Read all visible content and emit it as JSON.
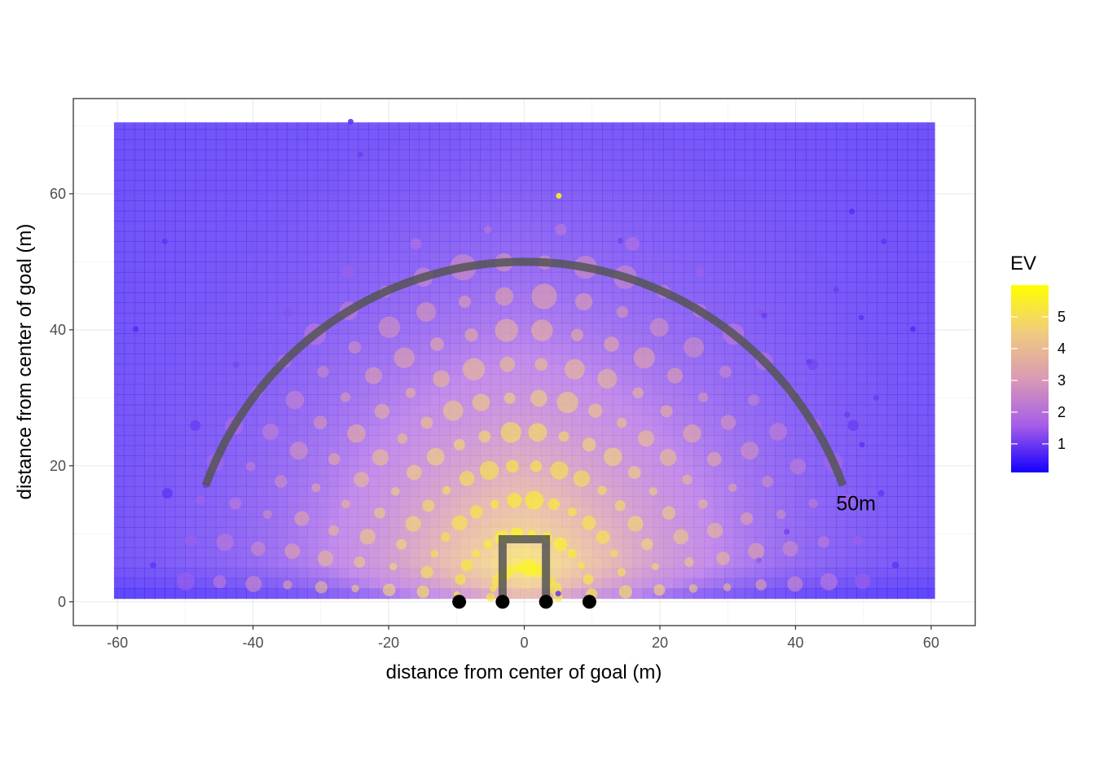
{
  "chart_data": {
    "type": "scatter",
    "title": "",
    "xlabel": "distance from center of goal (m)",
    "ylabel": "distance from center of goal (m)",
    "xlim": [
      -66.5,
      66.5
    ],
    "ylim": [
      -3.5,
      74
    ],
    "x_ticks": [
      -60,
      -40,
      -20,
      0,
      20,
      40,
      60
    ],
    "y_ticks": [
      0,
      20,
      40,
      60
    ],
    "grid": true,
    "background_field": {
      "description_free": true,
      "x_range": [
        -60.5,
        60.5
      ],
      "y_range": [
        0.5,
        70.5
      ],
      "ev_model": {
        "base": 5.9,
        "decay": 0.05,
        "side_factor": 1.0,
        "near_goal_dropoff": 6
      }
    },
    "legend": {
      "title": "EV",
      "placement": "right",
      "ticks": [
        1,
        2,
        3,
        4,
        5
      ],
      "range": [
        0.1,
        6.0
      ],
      "colors": [
        "#1400ff",
        "#b370e6",
        "#e2a7a6",
        "#f2d479",
        "#ffff00"
      ]
    },
    "arc": {
      "radius": 50,
      "start_deg": 20,
      "end_deg": 160,
      "color": "#555555",
      "label": "50m",
      "label_x": 46,
      "label_y": 14.5
    },
    "goal_posts": {
      "x": [
        -3.2,
        3.2
      ],
      "height": 9.2,
      "color": "#555555"
    },
    "posts": {
      "x": [
        -9.6,
        -3.2,
        3.2,
        9.6
      ],
      "y": [
        0,
        0,
        0,
        0
      ]
    },
    "semicircles": [
      {
        "radius": 5,
        "count": 12,
        "ev": 5.8,
        "size": 1.1
      },
      {
        "radius": 10,
        "count": 14,
        "ev": 5.9,
        "size": 1.0
      },
      {
        "radius": 15,
        "count": 16,
        "ev": 5.6,
        "size": 1.3
      },
      {
        "radius": 20,
        "count": 18,
        "ev": 5.3,
        "size": 1.5
      },
      {
        "radius": 25,
        "count": 20,
        "ev": 4.9,
        "size": 1.6
      },
      {
        "radius": 30,
        "count": 22,
        "ev": 4.4,
        "size": 1.7
      },
      {
        "radius": 35,
        "count": 22,
        "ev": 3.9,
        "size": 1.8
      },
      {
        "radius": 40,
        "count": 24,
        "ev": 3.4,
        "size": 1.9
      },
      {
        "radius": 45,
        "count": 24,
        "ev": 3.0,
        "size": 2.0
      },
      {
        "radius": 50,
        "count": 26,
        "ev": 2.6,
        "size": 2.2
      },
      {
        "radius": 55,
        "count": 16,
        "ev": 2.0,
        "size": 0.9
      }
    ],
    "outer_points": [
      {
        "x": -25.6,
        "y": 70.6,
        "ev": 0.8
      },
      {
        "x": -24.2,
        "y": 65.8,
        "ev": 0.9
      },
      {
        "x": 5.1,
        "y": 59.7,
        "ev": 5.7
      },
      {
        "x": -53.0,
        "y": 53.0,
        "ev": 0.8
      },
      {
        "x": 48.3,
        "y": 57.4,
        "ev": 0.7
      },
      {
        "x": 53.0,
        "y": 53.0,
        "ev": 0.8
      },
      {
        "x": -57.3,
        "y": 40.1,
        "ev": 0.7
      },
      {
        "x": 57.3,
        "y": 40.1,
        "ev": 0.7
      },
      {
        "x": 46.0,
        "y": 45.9,
        "ev": 0.9
      },
      {
        "x": 49.7,
        "y": 41.8,
        "ev": 0.8
      },
      {
        "x": 51.9,
        "y": 30.0,
        "ev": 0.9
      },
      {
        "x": 49.8,
        "y": 23.1,
        "ev": 0.8
      },
      {
        "x": 47.6,
        "y": 27.5,
        "ev": 0.9
      },
      {
        "x": -47.0,
        "y": 17.1,
        "ev": 0.9
      },
      {
        "x": 38.7,
        "y": 10.3,
        "ev": 1.0
      },
      {
        "x": 34.6,
        "y": 6.1,
        "ev": 1.3
      },
      {
        "x": 5.0,
        "y": 1.2,
        "ev": 0.9
      },
      {
        "x": 14.2,
        "y": 53.1,
        "ev": 1.0
      },
      {
        "x": 35.4,
        "y": 42.1,
        "ev": 0.9
      },
      {
        "x": 42.0,
        "y": 35.3,
        "ev": 0.9
      }
    ]
  }
}
